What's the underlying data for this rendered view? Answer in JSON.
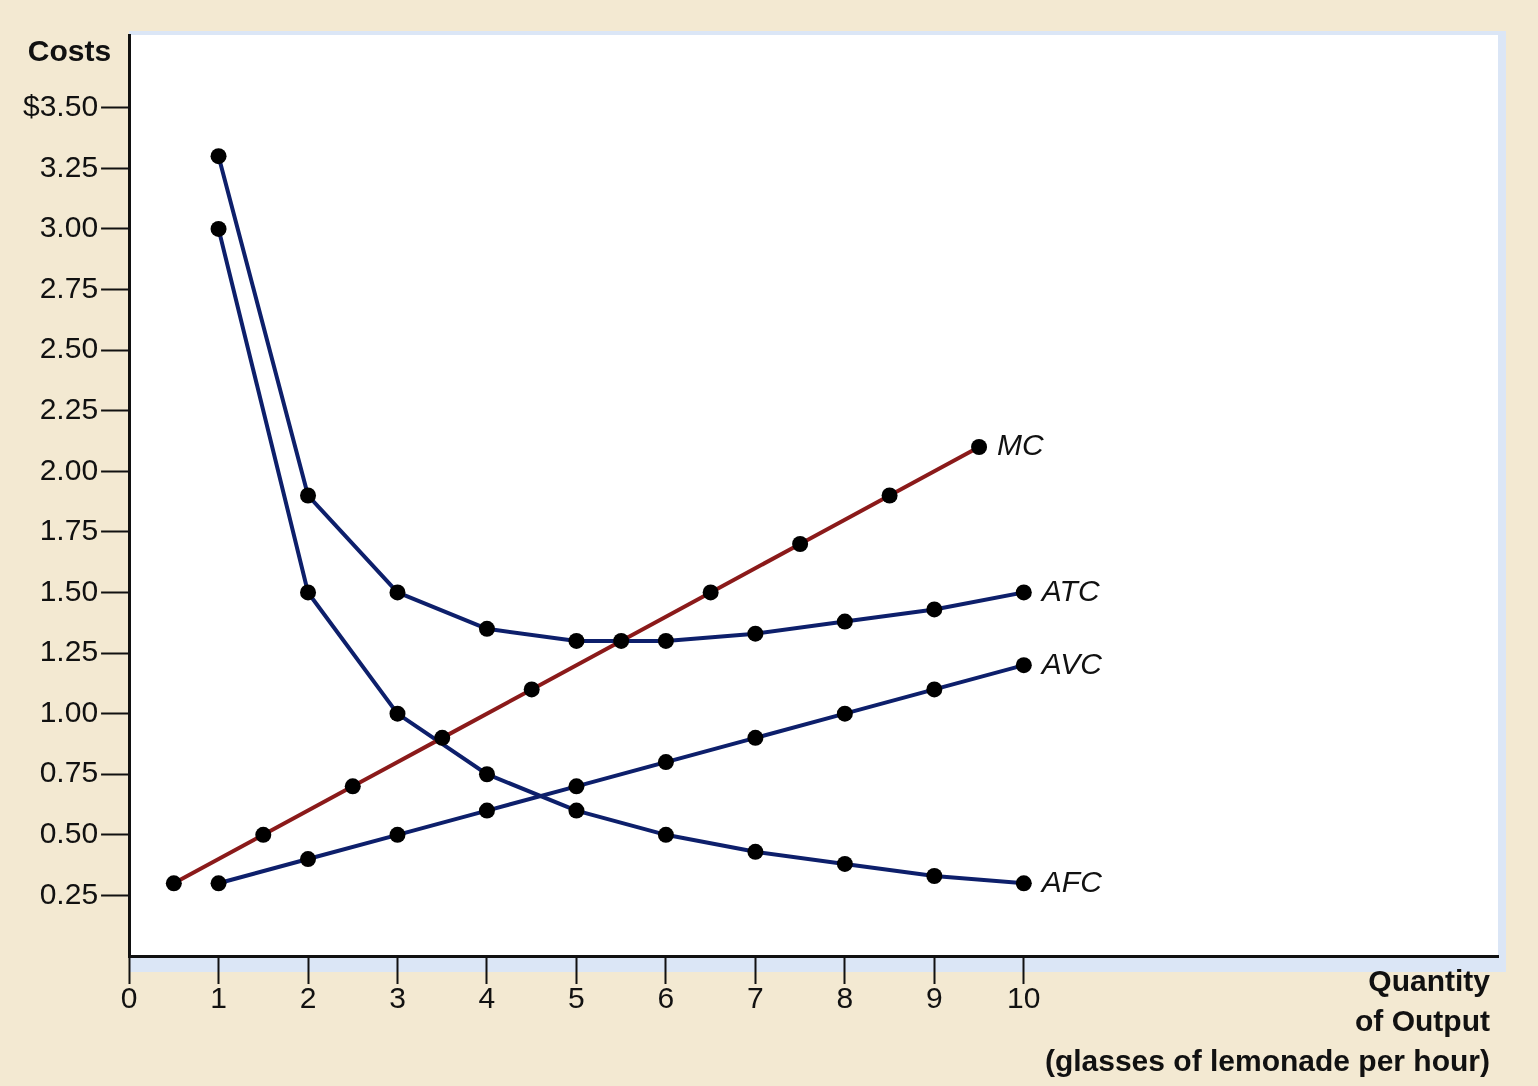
{
  "chart_data": {
    "type": "line",
    "ylabel": "Costs",
    "xlabel": "Quantity\nof Output\n(glasses of lemonade per hour)",
    "xlim": [
      0,
      15.3
    ],
    "ylim": [
      0,
      3.8
    ],
    "xticks": [
      0,
      1,
      2,
      3,
      4,
      5,
      6,
      7,
      8,
      9,
      10
    ],
    "yticks": [
      {
        "value": 0.25,
        "label": "0.25"
      },
      {
        "value": 0.5,
        "label": "0.50"
      },
      {
        "value": 0.75,
        "label": "0.75"
      },
      {
        "value": 1,
        "label": "1.00"
      },
      {
        "value": 1.25,
        "label": "1.25"
      },
      {
        "value": 1.5,
        "label": "1.50"
      },
      {
        "value": 1.75,
        "label": "1.75"
      },
      {
        "value": 2,
        "label": "2.00"
      },
      {
        "value": 2.25,
        "label": "2.25"
      },
      {
        "value": 2.5,
        "label": "2.50"
      },
      {
        "value": 2.75,
        "label": "2.75"
      },
      {
        "value": 3,
        "label": "3.00"
      },
      {
        "value": 3.25,
        "label": "3.25"
      },
      {
        "value": 3.5,
        "label": "$3.50"
      }
    ],
    "grid": false,
    "legend": false,
    "marker": "circle",
    "line_style": "solid",
    "series": [
      {
        "name": "MC",
        "color": "#8b1a1a",
        "x": [
          0.5,
          1.5,
          2.5,
          3.5,
          4.5,
          5.5,
          6.5,
          7.5,
          8.5,
          9.5
        ],
        "values": [
          0.3,
          0.5,
          0.7,
          0.9,
          1.1,
          1.3,
          1.5,
          1.7,
          1.9,
          2.1
        ]
      },
      {
        "name": "ATC",
        "color": "#0d1f6b",
        "x": [
          1,
          2,
          3,
          4,
          5,
          6,
          7,
          8,
          9,
          10
        ],
        "values": [
          3.3,
          1.9,
          1.5,
          1.35,
          1.3,
          1.3,
          1.33,
          1.38,
          1.43,
          1.5
        ]
      },
      {
        "name": "AVC",
        "color": "#0d1f6b",
        "x": [
          1,
          2,
          3,
          4,
          5,
          6,
          7,
          8,
          9,
          10
        ],
        "values": [
          0.3,
          0.4,
          0.5,
          0.6,
          0.7,
          0.8,
          0.9,
          1.0,
          1.1,
          1.2
        ]
      },
      {
        "name": "AFC",
        "color": "#0d1f6b",
        "x": [
          1,
          2,
          3,
          4,
          5,
          6,
          7,
          8,
          9,
          10
        ],
        "values": [
          3.0,
          1.5,
          1.0,
          0.75,
          0.6,
          0.5,
          0.43,
          0.38,
          0.33,
          0.3
        ]
      }
    ]
  }
}
